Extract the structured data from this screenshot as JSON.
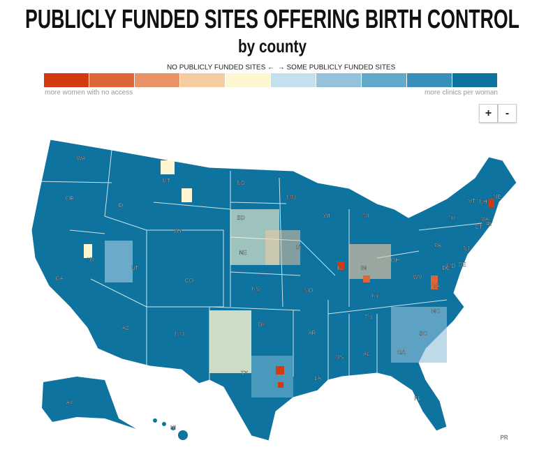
{
  "header": {
    "title": "PUBLICLY FUNDED SITES OFFERING BIRTH CONTROL",
    "subtitle": "by county"
  },
  "legend": {
    "left_label": "NO PUBLICLY FUNDED SITES ←",
    "right_label": "→ SOME PUBLICLY FUNDED SITES",
    "left_note": "more women with no access",
    "right_note": "more clinics per woman",
    "colors": [
      "#d13b0f",
      "#de6537",
      "#e99467",
      "#f4cca0",
      "#fdf6d0",
      "#c4e0ec",
      "#93c2da",
      "#63a9c9",
      "#3a8fba",
      "#0f73a0"
    ]
  },
  "zoom": {
    "in": "+",
    "out": "-"
  },
  "states": [
    "WA",
    "OR",
    "ID",
    "MT",
    "ND",
    "MN",
    "WI",
    "MI",
    "ME",
    "VT",
    "NH",
    "MA",
    "NY",
    "CT",
    "RI",
    "SD",
    "WY",
    "NE",
    "IA",
    "IL",
    "IN",
    "OH",
    "PA",
    "NJ",
    "MD",
    "DC",
    "DE",
    "NV",
    "UT",
    "CO",
    "KS",
    "MO",
    "KY",
    "WV",
    "VA",
    "CA",
    "AZ",
    "NM",
    "OK",
    "AR",
    "TN",
    "NC",
    "SC",
    "TX",
    "LA",
    "MS",
    "AL",
    "GA",
    "FL",
    "AK",
    "HI",
    "PR"
  ]
}
